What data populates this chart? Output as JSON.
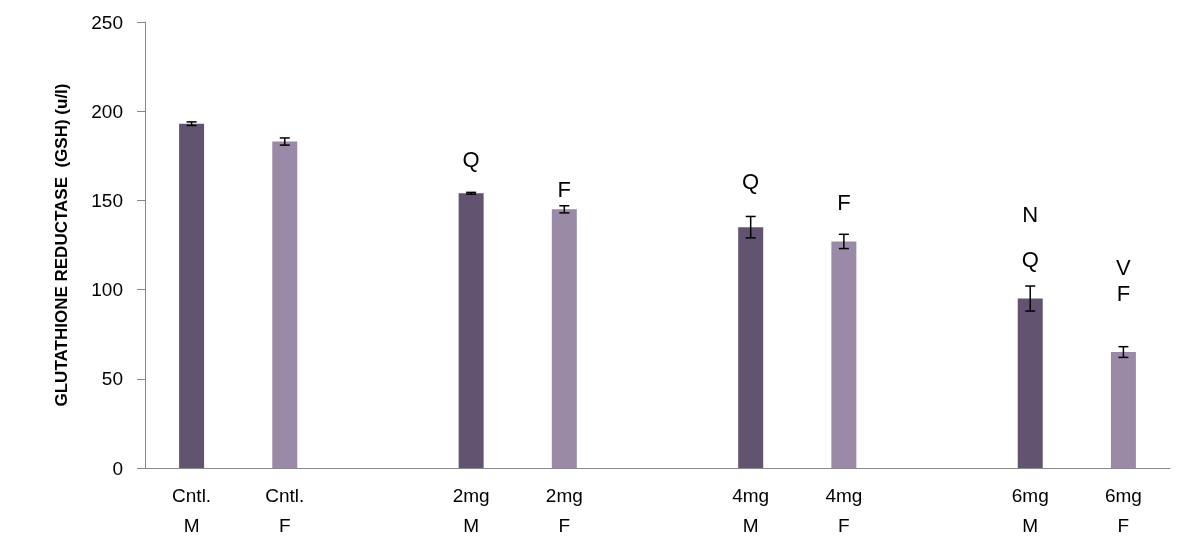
{
  "chart_data": {
    "type": "bar",
    "ylabel": "GLUTATHIONE REDUCTASE  (GSH) (u/l)",
    "categories": [
      "Cntl.\nM",
      "Cntl.\nF",
      null,
      "2mg\nM",
      "2mg\nF",
      null,
      "4mg\nM",
      "4mg\nF",
      null,
      "6mg\nM",
      "6mg\nF"
    ],
    "values": [
      193,
      183,
      null,
      154,
      145,
      null,
      135,
      127,
      null,
      95,
      65
    ],
    "colors": [
      "#625470",
      "#9a8aa8",
      null,
      "#625470",
      "#9a8aa8",
      null,
      "#625470",
      "#9a8aa8",
      null,
      "#625470",
      "#9a8aa8"
    ],
    "errors": [
      1,
      2,
      null,
      0.5,
      2,
      null,
      6,
      4,
      null,
      7,
      3
    ],
    "ylim": [
      0,
      250
    ],
    "yticks": [
      0,
      50,
      100,
      150,
      200,
      250
    ],
    "grid": false,
    "annotations": [
      "Q",
      "F",
      "Q",
      "F",
      "N",
      "Q",
      "V",
      "F"
    ]
  }
}
